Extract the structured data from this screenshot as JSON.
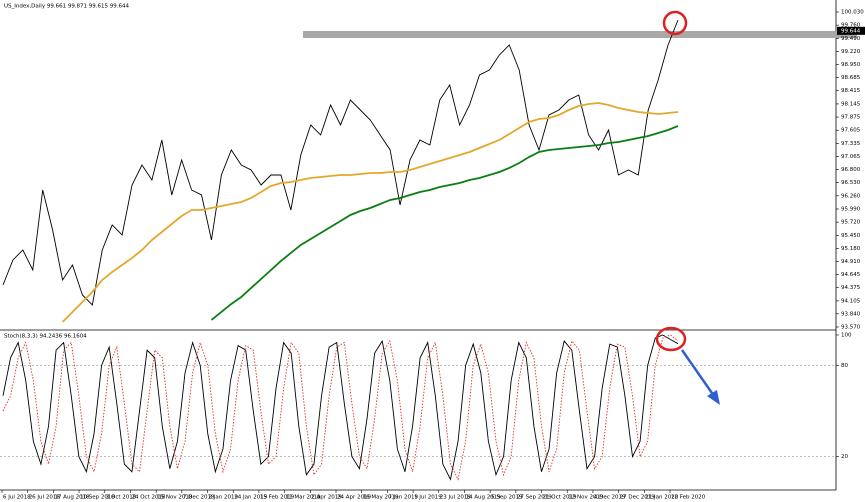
{
  "chart_data": [
    {
      "type": "line",
      "title": "US_Index,Daily  99.661 99.871 99.615 99.644",
      "ylim": [
        93.508,
        100.112
      ],
      "yticks": [
        {
          "value": 93.57,
          "label": "93.570"
        },
        {
          "value": 93.84,
          "label": "93.840"
        },
        94.105,
        94.375,
        94.645,
        {
          "value": 94.91,
          "label": "94.910"
        },
        {
          "value": 95.18,
          "label": "95.180"
        },
        {
          "value": 95.45,
          "label": "95.450"
        },
        {
          "value": 95.72,
          "label": "95.720"
        },
        {
          "value": 95.99,
          "label": "95.990"
        },
        {
          "value": 96.26,
          "label": "96.260"
        },
        {
          "value": 96.53,
          "label": "96.530"
        },
        {
          "value": 96.8,
          "label": "96.800"
        },
        97.065,
        97.335,
        97.605,
        97.875,
        98.145,
        98.415,
        98.685,
        {
          "value": 98.95,
          "label": "98.950"
        },
        {
          "value": 99.22,
          "label": "99.220"
        },
        {
          "value": 99.49,
          "label": "99.490"
        },
        {
          "value": 99.76,
          "label": "99.760"
        },
        {
          "value": 100.03,
          "label": "100.030"
        }
      ],
      "current_price": 99.644,
      "resistance_zone": [
        99.497,
        99.64
      ],
      "x_labels": [
        "6 Jul 2018",
        "26 Jul 2018",
        "17 Aug 2018",
        "10 Sep 2018",
        "3 Oct 2018",
        "24 Oct 2018",
        "15 Nov 2018",
        "7 Dec 2018",
        "2 Jan 2019",
        "24 Jan 2019",
        "15 Feb 2019",
        "11 Mar 2019",
        "2 Apr 2019",
        "24 Apr 2019",
        "16 May 2019",
        "7 Jun 2019",
        "1 Jul 2019",
        "23 Jul 2019",
        "14 Aug 2019",
        "5 Sep 2019",
        "27 Sep 2019",
        "21 Oct 2019",
        "12 Nov 2019",
        "4 Dec 2019",
        "27 Dec 2019",
        "21 Jan 2020",
        "12 Feb 2020"
      ],
      "series": [
        {
          "color": "#000000",
          "values": [
            94.431,
            94.944,
            95.149,
            94.739,
            96.38,
            95.559,
            94.534,
            94.841,
            94.226,
            94.021,
            95.149,
            95.662,
            95.457,
            96.482,
            96.892,
            96.585,
            97.405,
            96.277,
            96.995,
            96.38,
            96.277,
            95.354,
            96.687,
            97.2,
            96.892,
            96.79,
            96.482,
            96.687,
            96.687,
            95.969,
            97.097,
            97.713,
            97.508,
            98.123,
            97.713,
            98.225,
            98.02,
            97.815,
            97.508,
            97.2,
            96.072,
            96.995,
            97.405,
            97.302,
            98.225,
            98.533,
            97.713,
            98.123,
            98.738,
            98.841,
            99.148,
            99.353,
            98.841,
            97.713,
            97.2,
            97.918,
            98.02,
            98.225,
            98.328,
            97.508,
            97.2,
            97.61,
            96.687,
            96.79,
            96.687,
            98.02,
            98.635,
            99.353,
            99.866
          ]
        },
        {
          "color": "#e3a82b",
          "values": [
            null,
            null,
            null,
            null,
            null,
            null,
            93.673,
            93.878,
            94.083,
            94.288,
            94.534,
            94.698,
            94.841,
            94.985,
            95.149,
            95.354,
            95.518,
            95.682,
            95.846,
            95.969,
            95.969,
            96.01,
            96.051,
            96.092,
            96.134,
            96.216,
            96.339,
            96.462,
            96.523,
            96.544,
            96.585,
            96.626,
            96.646,
            96.667,
            96.687,
            96.687,
            96.708,
            96.728,
            96.728,
            96.749,
            96.749,
            96.79,
            96.851,
            96.913,
            96.974,
            97.036,
            97.097,
            97.159,
            97.241,
            97.323,
            97.405,
            97.528,
            97.651,
            97.774,
            97.836,
            97.856,
            97.918,
            98.02,
            98.102,
            98.143,
            98.164,
            98.123,
            98.061,
            98.02,
            97.979,
            97.959,
            97.938,
            97.959,
            97.979
          ]
        },
        {
          "color": "#0b7d12",
          "values": [
            null,
            null,
            null,
            null,
            null,
            null,
            null,
            null,
            null,
            null,
            null,
            null,
            null,
            null,
            null,
            null,
            null,
            null,
            null,
            null,
            null,
            93.714,
            93.878,
            94.042,
            94.185,
            94.37,
            94.554,
            94.739,
            94.924,
            95.088,
            95.252,
            95.375,
            95.498,
            95.621,
            95.744,
            95.867,
            95.949,
            96.01,
            96.092,
            96.175,
            96.216,
            96.277,
            96.339,
            96.38,
            96.441,
            96.482,
            96.523,
            96.585,
            96.626,
            96.687,
            96.749,
            96.831,
            96.933,
            97.056,
            97.159,
            97.2,
            97.22,
            97.241,
            97.262,
            97.282,
            97.302,
            97.343,
            97.364,
            97.405,
            97.446,
            97.487,
            97.549,
            97.61,
            97.692
          ]
        }
      ]
    },
    {
      "type": "line",
      "title": "Stoch(8,3,3) 94.2436 96.1604",
      "ylim": [
        -2,
        102.6
      ],
      "yticks": [
        100,
        80,
        20
      ],
      "levels": [
        80,
        20
      ],
      "series": [
        {
          "color": "#000000",
          "values": [
            60,
            85,
            95,
            70,
            30,
            15,
            40,
            90,
            95,
            60,
            20,
            10,
            35,
            80,
            92,
            55,
            15,
            10,
            50,
            90,
            85,
            40,
            12,
            30,
            75,
            95,
            80,
            35,
            10,
            25,
            70,
            93,
            90,
            50,
            15,
            20,
            65,
            95,
            88,
            40,
            8,
            15,
            60,
            92,
            95,
            55,
            20,
            12,
            45,
            88,
            96,
            70,
            25,
            10,
            40,
            85,
            95,
            60,
            15,
            5,
            30,
            80,
            94,
            75,
            30,
            8,
            20,
            70,
            95,
            85,
            40,
            10,
            25,
            75,
            96,
            90,
            50,
            12,
            20,
            65,
            94,
            92,
            60,
            20,
            30,
            80,
            98,
            100,
            97,
            94.2436
          ]
        },
        {
          "color": "#e0301e",
          "style": "dotted",
          "values": [
            50,
            60,
            85,
            95,
            70,
            30,
            15,
            40,
            90,
            95,
            60,
            20,
            10,
            35,
            80,
            92,
            55,
            15,
            10,
            50,
            90,
            85,
            40,
            12,
            30,
            75,
            95,
            80,
            35,
            10,
            25,
            70,
            93,
            90,
            50,
            15,
            20,
            65,
            95,
            88,
            40,
            8,
            15,
            60,
            92,
            95,
            55,
            20,
            12,
            45,
            88,
            96,
            70,
            25,
            10,
            40,
            85,
            95,
            60,
            15,
            5,
            30,
            80,
            94,
            75,
            30,
            8,
            20,
            70,
            95,
            85,
            40,
            10,
            25,
            75,
            96,
            90,
            50,
            12,
            20,
            65,
            94,
            92,
            60,
            20,
            30,
            80,
            98,
            100,
            96.1604
          ]
        }
      ]
    }
  ]
}
